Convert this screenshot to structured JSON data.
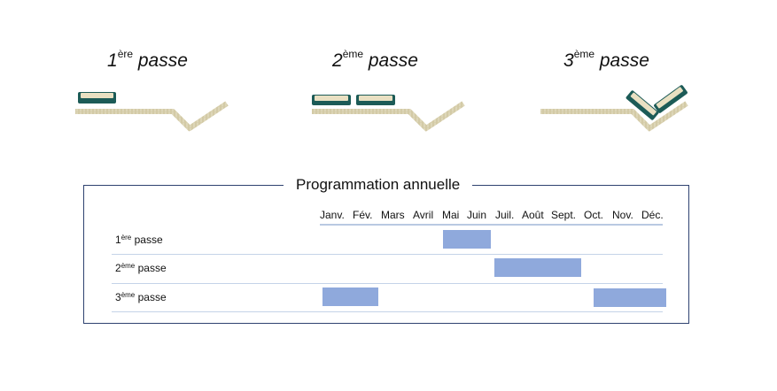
{
  "passes": [
    {
      "num": "1",
      "sup": "ère",
      "word": "passe"
    },
    {
      "num": "2",
      "sup": "ème",
      "word": "passe"
    },
    {
      "num": "3",
      "sup": "ème",
      "word": "passe"
    }
  ],
  "schedule": {
    "title": "Programmation annuelle",
    "months": [
      "Janv.",
      "Fév.",
      "Mars",
      "Avril",
      "Mai",
      "Juin",
      "Juil.",
      "Août",
      "Sept.",
      "Oct.",
      "Nov.",
      "Déc."
    ],
    "rows": [
      {
        "num": "1",
        "sup": "ère",
        "word": "passe",
        "periods": [
          {
            "from": "Mai",
            "to": "Juin"
          }
        ]
      },
      {
        "num": "2",
        "sup": "ème",
        "word": "passe",
        "periods": [
          {
            "from": "Juil.",
            "to": "Sept."
          }
        ]
      },
      {
        "num": "3",
        "sup": "ème",
        "word": "passe",
        "periods": [
          {
            "from": "Janv.",
            "to": "Fév."
          },
          {
            "from": "Oct.",
            "to": "Déc."
          }
        ]
      }
    ]
  },
  "colors": {
    "blade_outer": "#1c5b57",
    "blade_inner": "#e9e0c2",
    "grass": "#d7cfad",
    "bar": "#8fa9dc",
    "frame": "#2e4270"
  }
}
